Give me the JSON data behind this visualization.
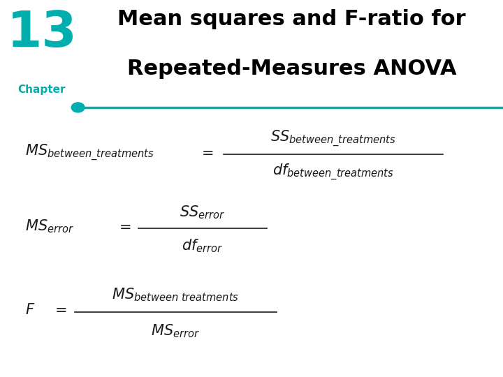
{
  "title_line1": "Mean squares and F-ratio for",
  "title_line2": "Repeated-Measures ANOVA",
  "chapter_number": "13",
  "chapter_text": "Chapter",
  "chapter_color": "#00AEAE",
  "title_color": "#000000",
  "line_color": "#00AEAE",
  "bg_color": "#ffffff",
  "formula_color": "#1a1a1a",
  "chapter_num_fontsize": 52,
  "chapter_txt_fontsize": 11,
  "title_fontsize": 22,
  "formula_fontsize": 15
}
